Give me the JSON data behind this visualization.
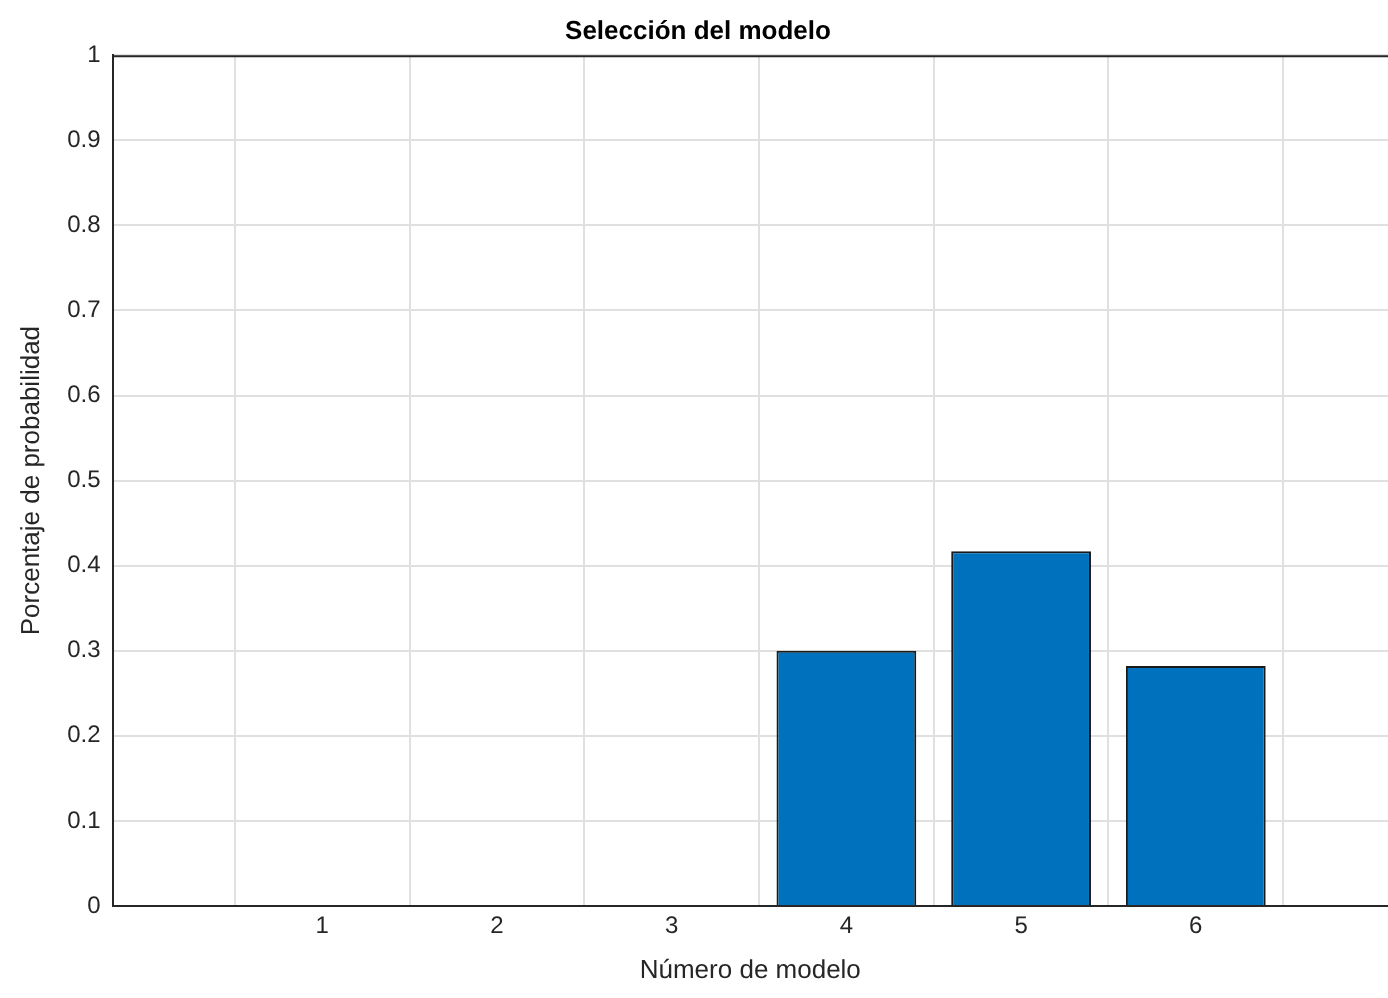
{
  "chart_data": {
    "type": "bar",
    "title": "Selección del modelo",
    "xlabel": "Número de modelo",
    "ylabel": "Porcentaje de probabilidad",
    "x": [
      4,
      5,
      6
    ],
    "values": [
      0.3,
      0.417,
      0.282
    ],
    "color": "#0072bd",
    "xlim": [
      -0.2,
      7.1
    ],
    "xticks": [
      1,
      2,
      3,
      4,
      5,
      6
    ],
    "ylim": [
      0,
      1
    ],
    "yticks": [
      0,
      0.1,
      0.2,
      0.3,
      0.4,
      0.5,
      0.6,
      0.7,
      0.8,
      0.9,
      1
    ],
    "grid": true
  }
}
